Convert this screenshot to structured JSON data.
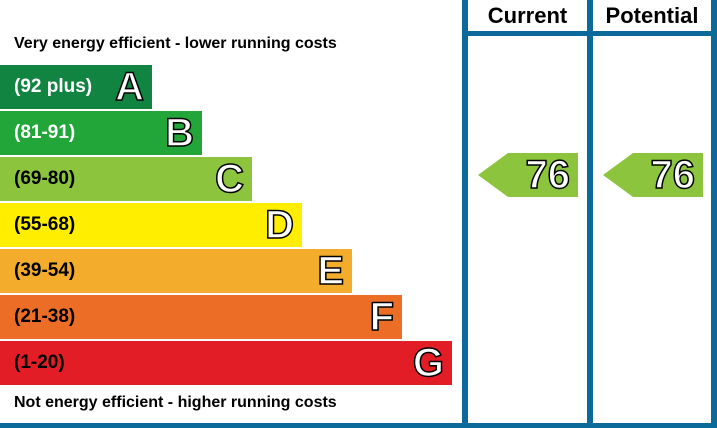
{
  "chart_data": {
    "type": "bar",
    "title": "",
    "top_caption": "Very energy efficient - lower running costs",
    "bottom_caption": "Not energy efficient - higher running costs",
    "bands": [
      {
        "range": "(92 plus)",
        "letter": "A",
        "color": "#108440",
        "light_text": false
      },
      {
        "range": "(81-91)",
        "letter": "B",
        "color": "#23a639",
        "light_text": false
      },
      {
        "range": "(69-80)",
        "letter": "C",
        "color": "#8cc43d",
        "light_text": true
      },
      {
        "range": "(55-68)",
        "letter": "D",
        "color": "#ffee00",
        "light_text": true
      },
      {
        "range": "(39-54)",
        "letter": "E",
        "color": "#f4ac2c",
        "light_text": true
      },
      {
        "range": "(21-38)",
        "letter": "F",
        "color": "#ec6d26",
        "light_text": true
      },
      {
        "range": "(1-20)",
        "letter": "G",
        "color": "#e31d25",
        "light_text": true
      }
    ],
    "columns": [
      {
        "header": "Current",
        "value": "76",
        "band": "C",
        "color": "#8cc43d"
      },
      {
        "header": "Potential",
        "value": "76",
        "band": "C",
        "color": "#8cc43d"
      }
    ],
    "border_color": "#0b6a9a"
  }
}
